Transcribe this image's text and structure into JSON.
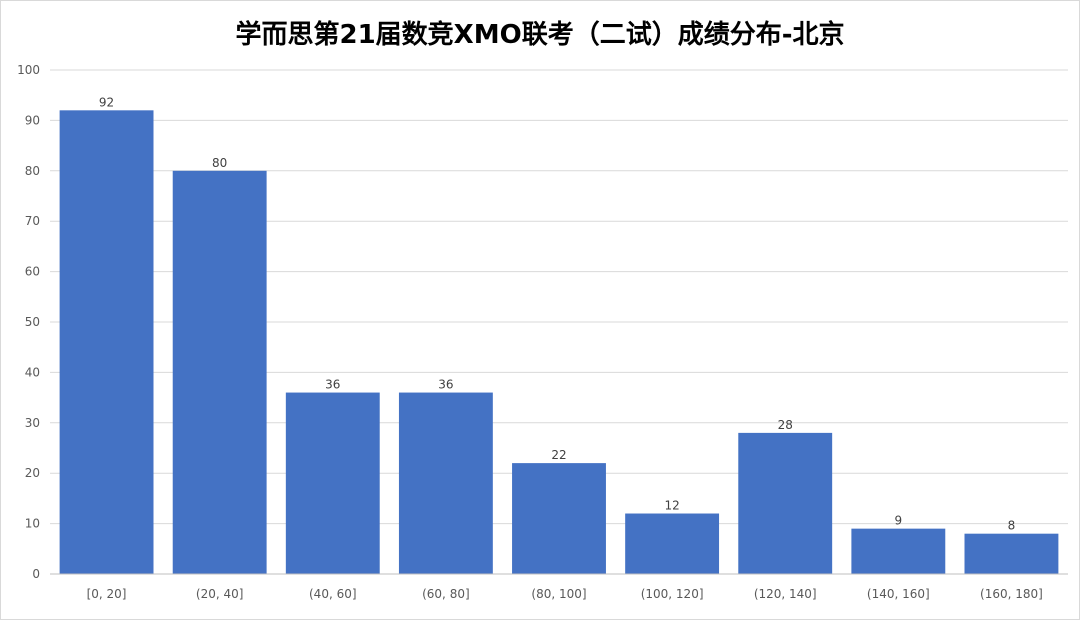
{
  "chart_data": {
    "type": "bar",
    "title": "学而思第21届数竞XMO联考（二试）成绩分布-北京",
    "categories": [
      "[0, 20]",
      "(20, 40]",
      "(40, 60]",
      "(60, 80]",
      "(80, 100]",
      "(100, 120]",
      "(120, 140]",
      "(140, 160]",
      "(160, 180]"
    ],
    "values": [
      92,
      80,
      36,
      36,
      22,
      12,
      28,
      9,
      8
    ],
    "ylim": [
      0,
      100
    ],
    "yticks": [
      0,
      10,
      20,
      30,
      40,
      50,
      60,
      70,
      80,
      90,
      100
    ],
    "ytick_labels": [
      "0",
      "10",
      "20",
      "30",
      "40",
      "50",
      "60",
      "70",
      "80",
      "90",
      "100"
    ],
    "grid": true,
    "legend": "none",
    "colors": {
      "bar": "#4472c4",
      "grid": "#d9d9d9",
      "axis": "#bfbfbf"
    }
  }
}
